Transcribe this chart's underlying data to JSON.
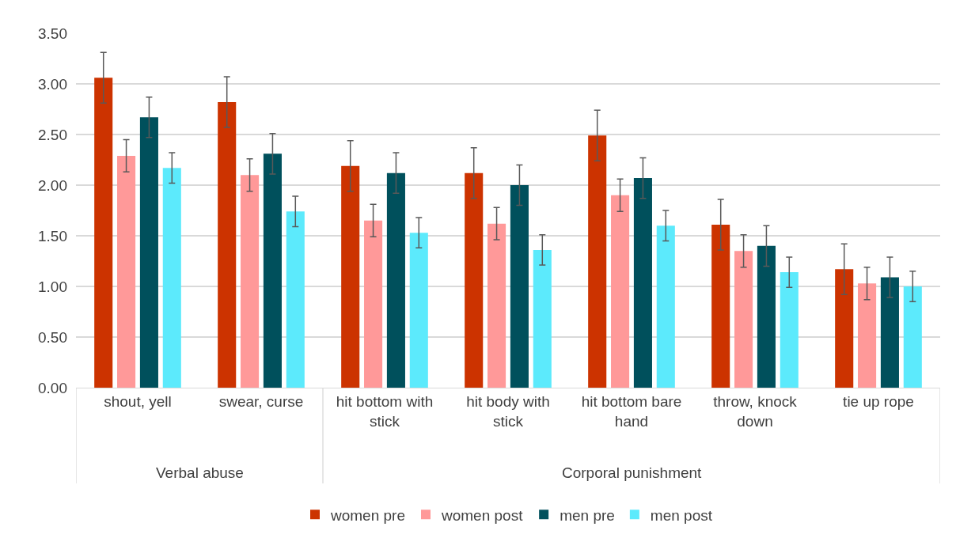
{
  "chart_data": {
    "type": "bar",
    "categories": [
      "shout, yell",
      "swear, curse",
      "hit bottom with stick",
      "hit body with stick",
      "hit bottom bare hand",
      "throw, knock down",
      "tie up rope"
    ],
    "annotations": [
      "Verbal abuse",
      "Corporal punishment"
    ],
    "series": [
      {
        "name": "women pre",
        "color": "#cc3300",
        "values": [
          3.06,
          2.82,
          2.19,
          2.12,
          2.49,
          1.61,
          1.17
        ],
        "errors": [
          0.25,
          0.25,
          0.25,
          0.25,
          0.25,
          0.25,
          0.25
        ]
      },
      {
        "name": "women post",
        "color": "#ff9999",
        "values": [
          2.29,
          2.1,
          1.65,
          1.62,
          1.9,
          1.35,
          1.03
        ],
        "errors": [
          0.16,
          0.16,
          0.16,
          0.16,
          0.16,
          0.16,
          0.16
        ]
      },
      {
        "name": "men pre",
        "color": "#00505c",
        "values": [
          2.67,
          2.31,
          2.12,
          2.0,
          2.07,
          1.4,
          1.09
        ],
        "errors": [
          0.2,
          0.2,
          0.2,
          0.2,
          0.2,
          0.2,
          0.2
        ]
      },
      {
        "name": "men post",
        "color": "#5ceafc",
        "values": [
          2.17,
          1.74,
          1.53,
          1.36,
          1.6,
          1.14,
          1.0
        ],
        "errors": [
          0.15,
          0.15,
          0.15,
          0.15,
          0.15,
          0.15,
          0.15
        ]
      }
    ],
    "ylim": [
      0,
      3.5
    ],
    "yticks": [
      {
        "value": 0,
        "label": "0.00"
      },
      {
        "value": 0.5,
        "label": "0.50"
      },
      {
        "value": 1,
        "label": "1.00"
      },
      {
        "value": 1.5,
        "label": "1.50"
      },
      {
        "value": 2,
        "label": "2.00"
      },
      {
        "value": 2.5,
        "label": "2.50"
      },
      {
        "value": 3,
        "label": "3.00"
      },
      {
        "value": 3.5,
        "label": "3.50"
      }
    ],
    "grid": "y",
    "legend": "bottom"
  }
}
